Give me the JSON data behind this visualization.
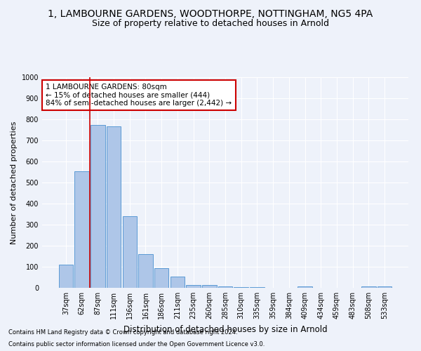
{
  "title": "1, LAMBOURNE GARDENS, WOODTHORPE, NOTTINGHAM, NG5 4PA",
  "subtitle": "Size of property relative to detached houses in Arnold",
  "xlabel": "Distribution of detached houses by size in Arnold",
  "ylabel": "Number of detached properties",
  "categories": [
    "37sqm",
    "62sqm",
    "87sqm",
    "111sqm",
    "136sqm",
    "161sqm",
    "186sqm",
    "211sqm",
    "235sqm",
    "260sqm",
    "285sqm",
    "310sqm",
    "335sqm",
    "359sqm",
    "384sqm",
    "409sqm",
    "434sqm",
    "459sqm",
    "483sqm",
    "508sqm",
    "533sqm"
  ],
  "values": [
    110,
    555,
    775,
    768,
    340,
    160,
    95,
    55,
    15,
    12,
    8,
    5,
    3,
    0,
    0,
    8,
    0,
    0,
    0,
    8,
    8
  ],
  "bar_color": "#aec6e8",
  "bar_edge_color": "#5b9bd5",
  "annotation_text_line1": "1 LAMBOURNE GARDENS: 80sqm",
  "annotation_text_line2": "← 15% of detached houses are smaller (444)",
  "annotation_text_line3": "84% of semi-detached houses are larger (2,442) →",
  "annotation_box_facecolor": "#ffffff",
  "annotation_box_edgecolor": "#cc0000",
  "red_line_x": 1.5,
  "ylim": [
    0,
    1000
  ],
  "yticks": [
    0,
    100,
    200,
    300,
    400,
    500,
    600,
    700,
    800,
    900,
    1000
  ],
  "background_color": "#eef2fa",
  "grid_color": "#ffffff",
  "title_fontsize": 10,
  "subtitle_fontsize": 9,
  "tick_fontsize": 7,
  "ylabel_fontsize": 8,
  "xlabel_fontsize": 8.5,
  "footnote_line1": "Contains HM Land Registry data © Crown copyright and database right 2024.",
  "footnote_line2": "Contains public sector information licensed under the Open Government Licence v3.0.",
  "footnote_fontsize": 6
}
